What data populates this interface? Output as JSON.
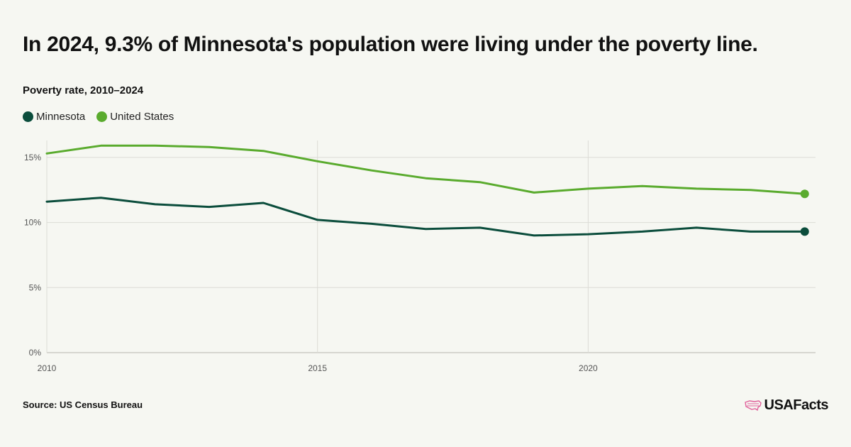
{
  "title": "In 2024, 9.3% of Minnesota's population were living under the poverty line.",
  "subtitle": "Poverty rate, 2010–2024",
  "source": "Source: US Census Bureau",
  "brand": {
    "name": "USAFacts",
    "icon": "us-map-icon",
    "icon_color": "#e0609a"
  },
  "colors": {
    "minnesota": "#0b4d3c",
    "united_states": "#5aab2e",
    "grid": "#dcdcd6",
    "background": "#f6f7f2"
  },
  "chart_data": {
    "type": "line",
    "x": [
      2010,
      2011,
      2012,
      2013,
      2014,
      2015,
      2016,
      2017,
      2018,
      2019,
      2020,
      2021,
      2022,
      2023,
      2024
    ],
    "series": [
      {
        "name": "Minnesota",
        "color": "#0b4d3c",
        "values": [
          11.6,
          11.9,
          11.4,
          11.2,
          11.5,
          10.2,
          9.9,
          9.5,
          9.6,
          9.0,
          9.1,
          9.3,
          9.6,
          9.3,
          9.3
        ],
        "end_marker": true
      },
      {
        "name": "United States",
        "color": "#5aab2e",
        "values": [
          15.3,
          15.9,
          15.9,
          15.8,
          15.5,
          14.7,
          14.0,
          13.4,
          13.1,
          12.3,
          12.6,
          12.8,
          12.6,
          12.5,
          12.2
        ],
        "end_marker": true
      }
    ],
    "xlim": [
      2010,
      2024.2
    ],
    "ylim": [
      0,
      16.3
    ],
    "x_ticks": [
      2010,
      2015,
      2020
    ],
    "x_tick_labels": [
      "2010",
      "2015",
      "2020"
    ],
    "y_ticks": [
      0,
      5,
      10,
      15
    ],
    "y_tick_labels": [
      "0%",
      "5%",
      "10%",
      "15%"
    ],
    "grid": true,
    "legend_position": "top-left"
  }
}
